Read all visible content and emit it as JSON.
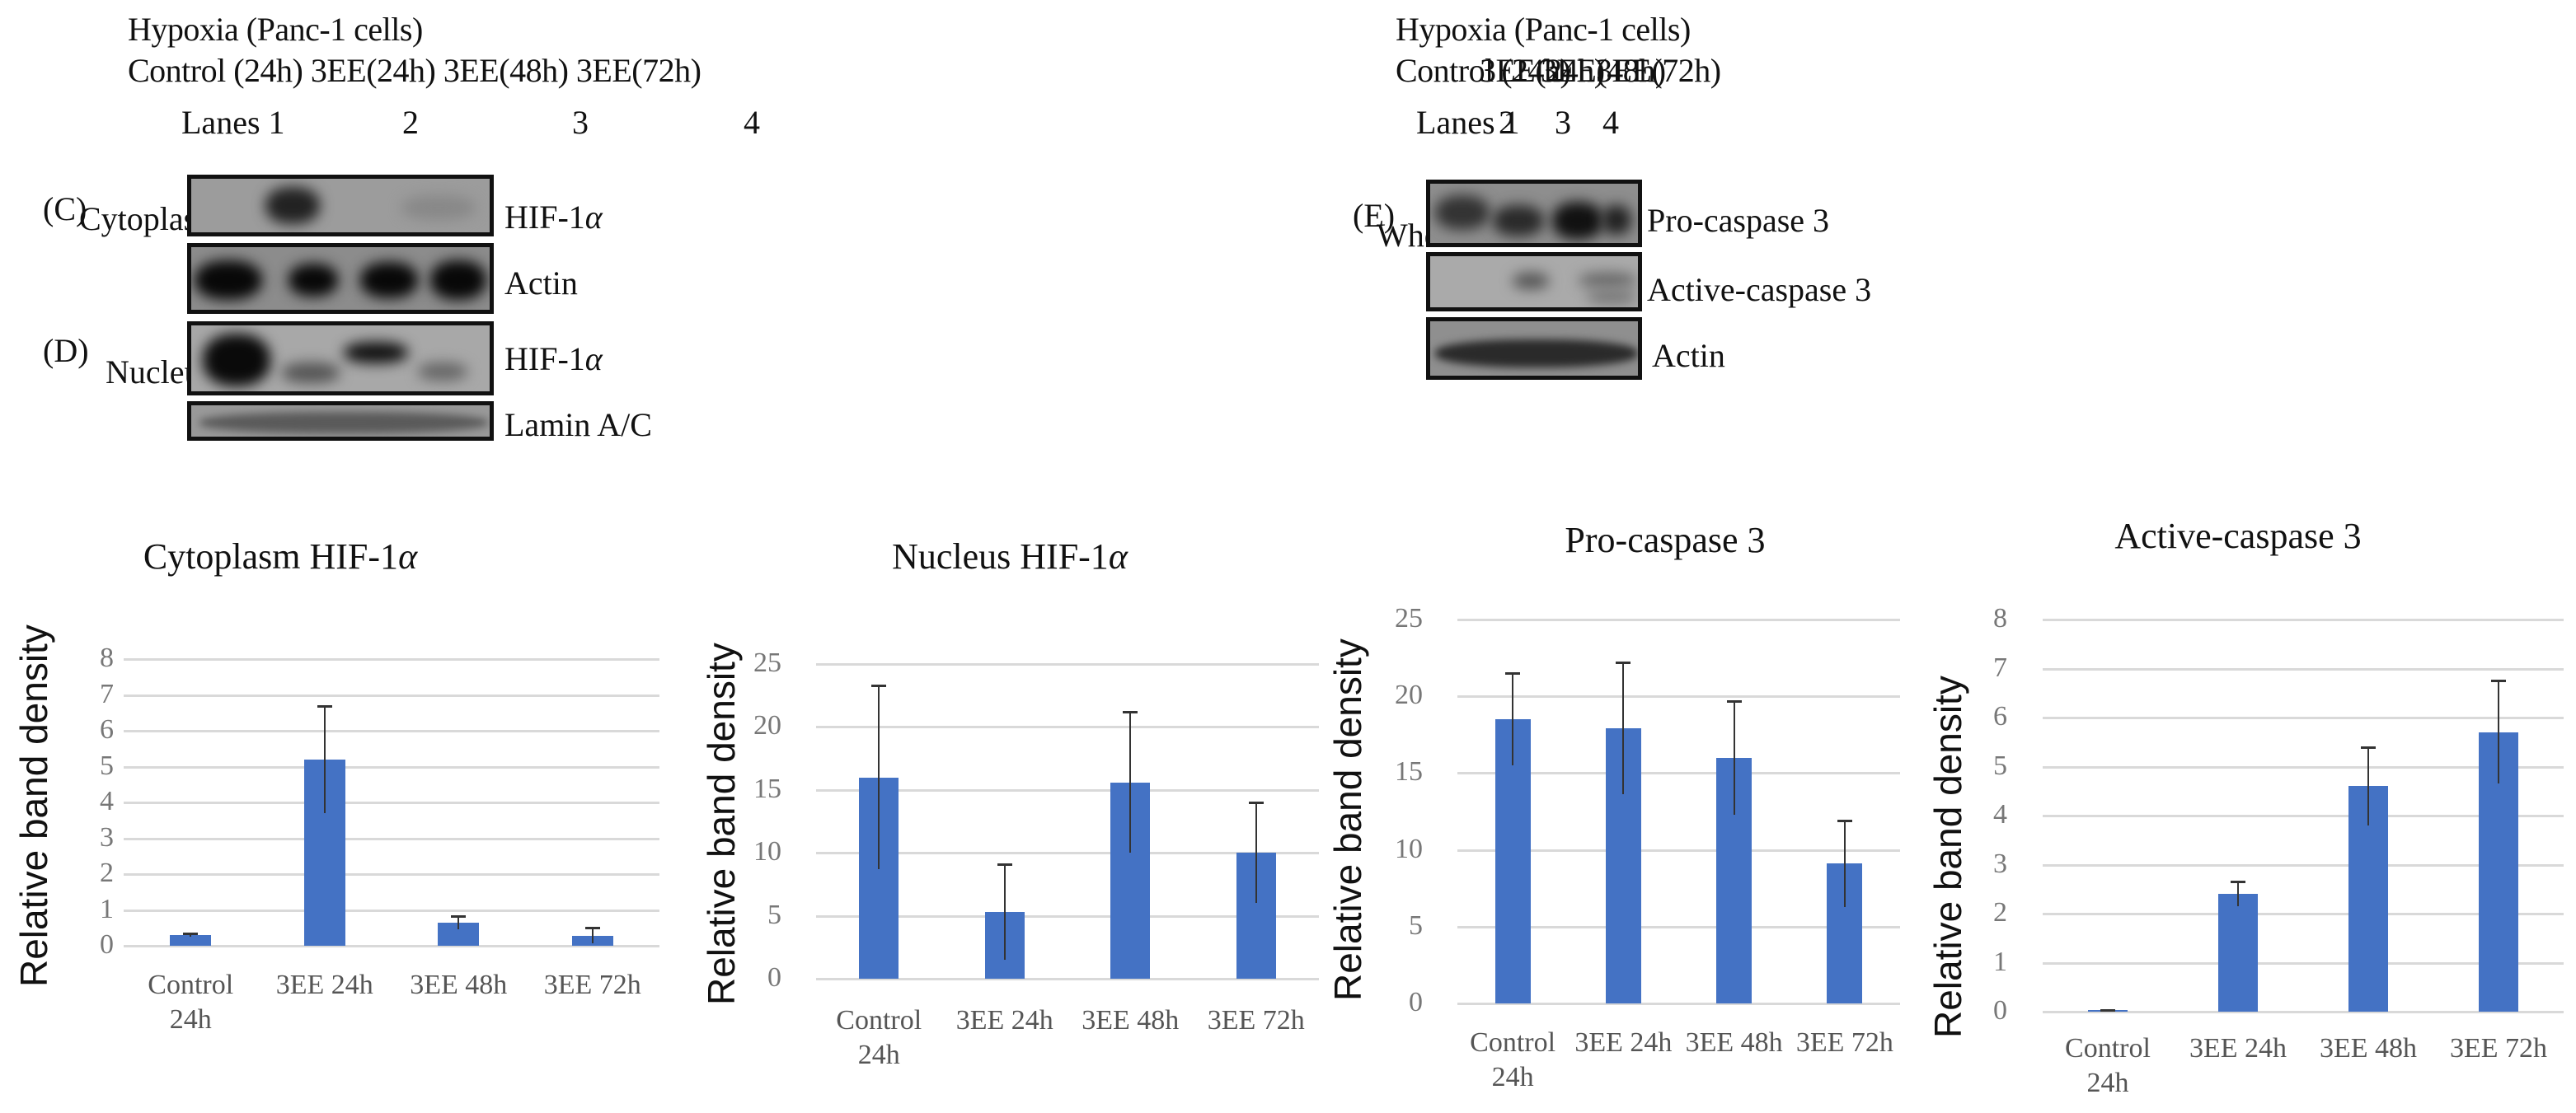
{
  "left_panel": {
    "condition": "Hypoxia (Panc-1 cells)",
    "groups": "Control (24h) 3EE(24h) 3EE(48h) 3EE(72h)",
    "lanes_label": "Lanes 1",
    "lanes": [
      "2",
      "3",
      "4"
    ],
    "panel_c": {
      "letter": "(C)",
      "fraction": "Cytoplasm"
    },
    "panel_d": {
      "letter": "(D)",
      "fraction": "Nucleus"
    },
    "blots": [
      {
        "label_main": "HIF-1",
        "label_greek": "α"
      },
      {
        "label_main": "Actin",
        "label_greek": ""
      },
      {
        "label_main": "HIF-1",
        "label_greek": "α"
      },
      {
        "label_main": "Lamin A/C",
        "label_greek": ""
      }
    ]
  },
  "right_panel": {
    "condition": "Hypoxia (Panc-1 cells)",
    "groups": [
      "Control (24h)",
      "3EE(24h)",
      "3EE(48h)",
      "3EE(72h)"
    ],
    "lanes_label": "Lanes 1",
    "lanes": [
      "2",
      "3",
      "4"
    ],
    "panel_e": {
      "letter": "(E)",
      "fraction": "Whole"
    },
    "blots": [
      {
        "label": "Pro-caspase 3"
      },
      {
        "label": "Active-caspase 3"
      },
      {
        "label": "Actin"
      }
    ]
  },
  "colors": {
    "bar": "#4472c4",
    "grid": "#d9d9d9",
    "error_bar": "#333333"
  },
  "chart_data": [
    {
      "type": "bar",
      "title": "Cytoplasm HIF-1α",
      "title_main": "Cytoplasm HIF-1",
      "title_greek": "α",
      "xlabel": "",
      "ylabel": "Relative band density",
      "categories": [
        "Control 24h",
        "3EE 24h",
        "3EE 48h",
        "3EE 72h"
      ],
      "category_lines": [
        [
          "Control",
          "24h"
        ],
        [
          "3EE 24h",
          ""
        ],
        [
          "3EE 48h",
          ""
        ],
        [
          "3EE 72h",
          ""
        ]
      ],
      "values": [
        0.3,
        5.2,
        0.65,
        0.28
      ],
      "error_plus": [
        0.05,
        1.5,
        0.18,
        0.22
      ],
      "ylim": [
        0,
        8
      ],
      "yticks": [
        "0",
        "1",
        "2",
        "3",
        "4",
        "5",
        "6",
        "7",
        "8"
      ],
      "grid": true,
      "legend": "none"
    },
    {
      "type": "bar",
      "title": "Nucleus HIF-1α",
      "title_main": "Nucleus HIF-1",
      "title_greek": "α",
      "xlabel": "",
      "ylabel": "Relative band density",
      "categories": [
        "Control 24h",
        "3EE 24h",
        "3EE 48h",
        "3EE 72h"
      ],
      "category_lines": [
        [
          "Control",
          "24h"
        ],
        [
          "3EE 24h",
          ""
        ],
        [
          "3EE 48h",
          ""
        ],
        [
          "3EE 72h",
          ""
        ]
      ],
      "values": [
        16.0,
        5.3,
        15.6,
        10.0
      ],
      "error_plus": [
        7.3,
        3.8,
        5.6,
        4.0
      ],
      "ylim": [
        0,
        25
      ],
      "yticks": [
        "0",
        "5",
        "10",
        "15",
        "20",
        "25"
      ],
      "grid": true,
      "legend": "none"
    },
    {
      "type": "bar",
      "title": "Pro-caspase 3",
      "title_main": "Pro-caspase 3",
      "title_greek": "",
      "xlabel": "",
      "ylabel": "Relative band density",
      "categories": [
        "Control 24h",
        "3EE 24h",
        "3EE 48h",
        "3EE 72h"
      ],
      "category_lines": [
        [
          "Control",
          "24h"
        ],
        [
          "3EE 24h",
          ""
        ],
        [
          "3EE 48h",
          ""
        ],
        [
          "3EE 72h",
          ""
        ]
      ],
      "values": [
        18.5,
        17.9,
        16.0,
        9.1
      ],
      "error_plus": [
        3.0,
        4.3,
        3.7,
        2.8
      ],
      "ylim": [
        0,
        25
      ],
      "yticks": [
        "0",
        "5",
        "10",
        "15",
        "20",
        "25"
      ],
      "grid": true,
      "legend": "none"
    },
    {
      "type": "bar",
      "title": "Active-caspase 3",
      "title_main": "Active-caspase 3",
      "title_greek": "",
      "xlabel": "",
      "ylabel": "Relative band density",
      "categories": [
        "Control 24h",
        "3EE 24h",
        "3EE 48h",
        "3EE 72h"
      ],
      "category_lines": [
        [
          "Control",
          "24h"
        ],
        [
          "3EE 24h",
          ""
        ],
        [
          "3EE 48h",
          ""
        ],
        [
          "3EE 72h",
          ""
        ]
      ],
      "values": [
        0.03,
        2.4,
        4.6,
        5.7
      ],
      "error_plus": [
        0.01,
        0.25,
        0.8,
        1.05
      ],
      "ylim": [
        0,
        8
      ],
      "yticks": [
        "0",
        "1",
        "2",
        "3",
        "4",
        "5",
        "6",
        "7",
        "8"
      ],
      "grid": true,
      "legend": "none"
    }
  ]
}
